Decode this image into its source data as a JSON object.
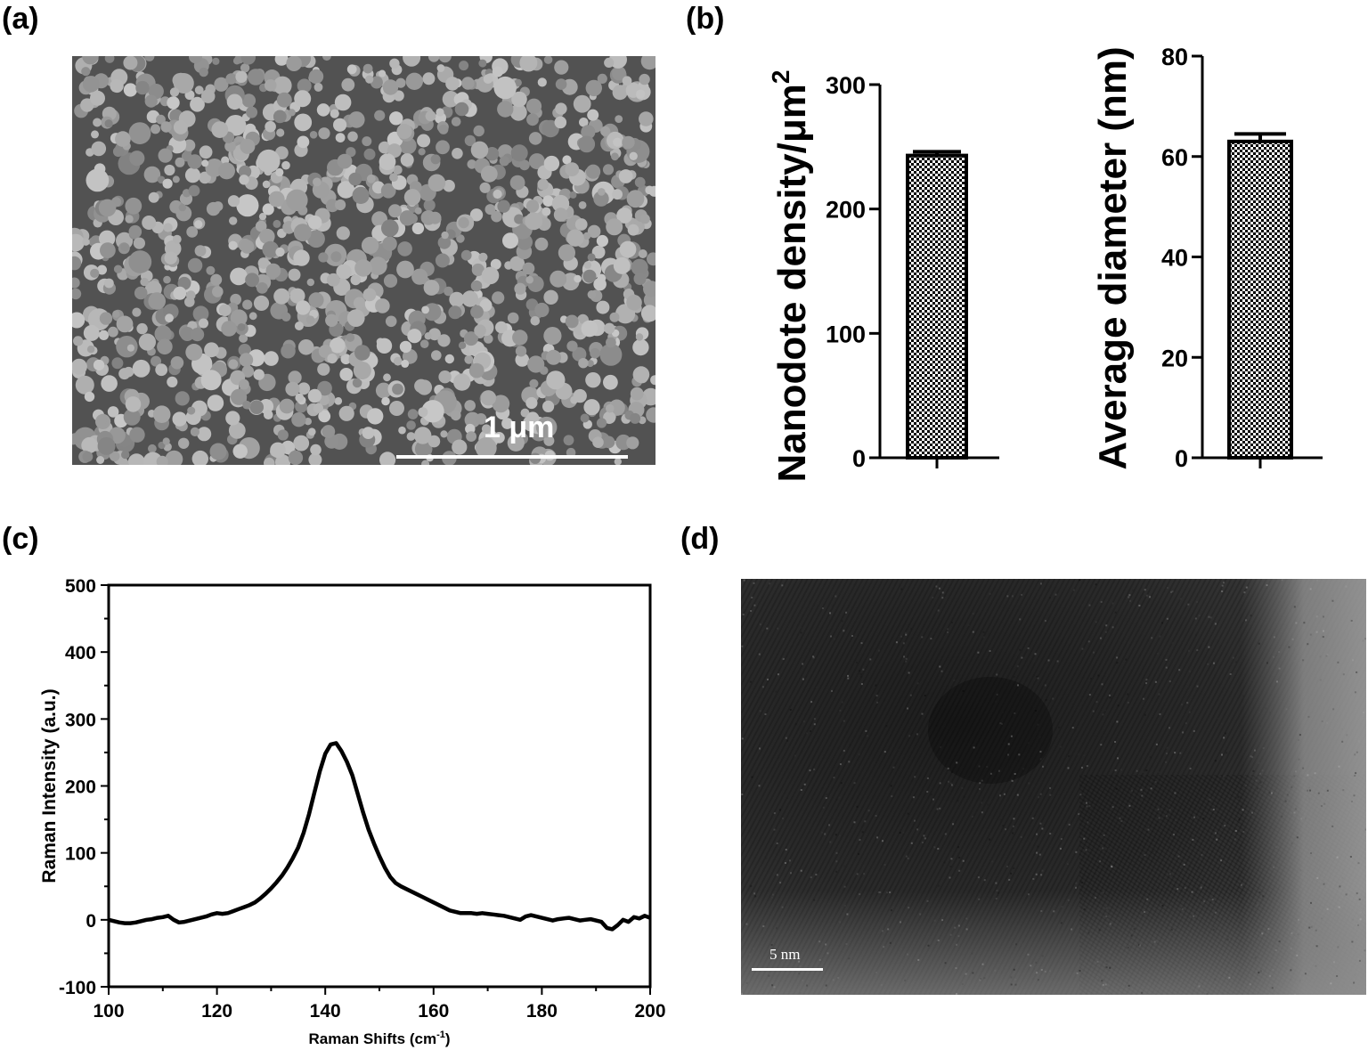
{
  "panels": {
    "a": {
      "label": "(a)",
      "scale_bar": "1 μm"
    },
    "b": {
      "label": "(b)"
    },
    "c": {
      "label": "(c)"
    },
    "d": {
      "label": "(d)",
      "scale_bar": "5 nm"
    }
  },
  "chart_data": [
    {
      "type": "bar",
      "panel": "b-left",
      "categories": [
        ""
      ],
      "values": [
        243
      ],
      "error": [
        3
      ],
      "ylabel": "Nanodote density/μm",
      "ylabel_superscript": "2",
      "ylim": [
        0,
        300
      ],
      "yticks": [
        "0",
        "100",
        "200",
        "300"
      ],
      "fill": "checkerboard",
      "colors": {
        "bar_stroke": "#000000"
      }
    },
    {
      "type": "bar",
      "panel": "b-right",
      "categories": [
        ""
      ],
      "values": [
        63
      ],
      "error": [
        1.5
      ],
      "ylabel": "Average diameter (nm)",
      "ylim": [
        0,
        80
      ],
      "yticks": [
        "0",
        "20",
        "40",
        "60",
        "80"
      ],
      "fill": "checkerboard",
      "colors": {
        "bar_stroke": "#000000"
      }
    },
    {
      "type": "line",
      "panel": "c",
      "xlabel": "Raman Shifts (cm",
      "xlabel_superscript": "-1",
      "xlabel_suffix": ")",
      "ylabel": "Raman Intensity (a.u.)",
      "xlim": [
        100,
        200
      ],
      "ylim": [
        -100,
        500
      ],
      "xticks": [
        "100",
        "120",
        "140",
        "160",
        "180",
        "200"
      ],
      "yticks": [
        "-100",
        "0",
        "100",
        "200",
        "300",
        "400",
        "500"
      ],
      "series": [
        {
          "x": [
            100,
            101,
            102,
            103,
            104,
            105,
            106,
            107,
            108,
            109,
            110,
            111,
            112,
            113,
            114,
            115,
            116,
            117,
            118,
            119,
            120,
            121,
            122,
            123,
            124,
            125,
            126,
            127,
            128,
            129,
            130,
            131,
            132,
            133,
            134,
            135,
            136,
            137,
            138,
            139,
            140,
            141,
            142,
            143,
            144,
            145,
            146,
            147,
            148,
            149,
            150,
            151,
            152,
            153,
            154,
            155,
            156,
            157,
            158,
            159,
            160,
            161,
            162,
            163,
            164,
            165,
            166,
            167,
            168,
            169,
            170,
            171,
            172,
            173,
            174,
            175,
            176,
            177,
            178,
            179,
            180,
            181,
            182,
            183,
            184,
            185,
            186,
            187,
            188,
            189,
            190,
            191,
            192,
            193,
            194,
            195,
            196,
            197,
            198,
            199,
            200
          ],
          "y": [
            0,
            -2,
            -4,
            -5,
            -5,
            -4,
            -2,
            0,
            1,
            3,
            4,
            6,
            0,
            -4,
            -3,
            -1,
            1,
            3,
            5,
            8,
            10,
            9,
            10,
            13,
            16,
            19,
            22,
            26,
            32,
            39,
            47,
            56,
            66,
            78,
            92,
            108,
            130,
            158,
            190,
            222,
            248,
            262,
            264,
            252,
            236,
            216,
            188,
            160,
            135,
            114,
            95,
            78,
            64,
            55,
            50,
            46,
            42,
            38,
            34,
            30,
            26,
            22,
            18,
            14,
            12,
            10,
            10,
            10,
            9,
            10,
            9,
            8,
            7,
            6,
            4,
            2,
            0,
            5,
            7,
            5,
            3,
            1,
            -1,
            1,
            2,
            3,
            1,
            -1,
            0,
            1,
            -1,
            -3,
            -12,
            -14,
            -8,
            0,
            -3,
            4,
            2,
            6,
            3
          ]
        }
      ]
    }
  ],
  "colors": {
    "axis": "#000000",
    "line": "#000000",
    "scale_bar": "#ffffff"
  }
}
